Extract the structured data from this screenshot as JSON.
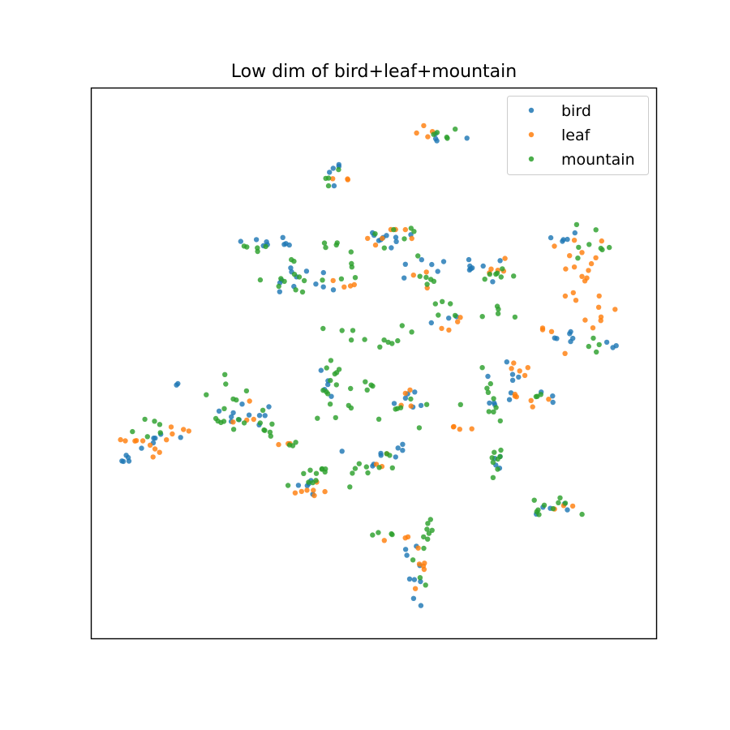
{
  "chart_data": {
    "type": "scatter",
    "title": "Low dim of bird+leaf+mountain",
    "xlabel": "",
    "ylabel": "",
    "xlim": [
      0,
      100
    ],
    "ylim": [
      0,
      100
    ],
    "ticks": "none",
    "grid": false,
    "legend_position": "top-right",
    "series": [
      {
        "name": "bird",
        "color": "#1f77b4",
        "clusters": [
          {
            "cx": 60.7,
            "cy": 93.0,
            "sx": 3.2,
            "sy": 1.8,
            "n": 4
          },
          {
            "cx": 42.8,
            "cy": 85.0,
            "sx": 0.9,
            "sy": 2.0,
            "n": 5
          },
          {
            "cx": 52.0,
            "cy": 73.5,
            "sx": 5.5,
            "sy": 1.6,
            "n": 10
          },
          {
            "cx": 29.0,
            "cy": 72.5,
            "sx": 2.5,
            "sy": 1.0,
            "n": 5
          },
          {
            "cx": 34.2,
            "cy": 72.5,
            "sx": 2.0,
            "sy": 1.0,
            "n": 4
          },
          {
            "cx": 35.0,
            "cy": 65.5,
            "sx": 3.5,
            "sy": 2.5,
            "n": 8
          },
          {
            "cx": 42.0,
            "cy": 66.0,
            "sx": 2.5,
            "sy": 2.0,
            "n": 4
          },
          {
            "cx": 59.0,
            "cy": 67.0,
            "sx": 3.5,
            "sy": 2.0,
            "n": 6
          },
          {
            "cx": 71.0,
            "cy": 67.5,
            "sx": 4.0,
            "sy": 2.0,
            "n": 8
          },
          {
            "cx": 85.5,
            "cy": 73.5,
            "sx": 2.5,
            "sy": 1.5,
            "n": 5
          },
          {
            "cx": 85.0,
            "cy": 55.5,
            "sx": 4.0,
            "sy": 1.2,
            "n": 6
          },
          {
            "cx": 93.0,
            "cy": 53.0,
            "sx": 1.2,
            "sy": 1.0,
            "n": 3
          },
          {
            "cx": 73.5,
            "cy": 48.5,
            "sx": 3.0,
            "sy": 2.0,
            "n": 5
          },
          {
            "cx": 63.0,
            "cy": 58.0,
            "sx": 2.0,
            "sy": 1.5,
            "n": 3
          },
          {
            "cx": 56.0,
            "cy": 43.0,
            "sx": 3.0,
            "sy": 1.5,
            "n": 6
          },
          {
            "cx": 41.5,
            "cy": 47.5,
            "sx": 1.5,
            "sy": 3.0,
            "n": 5
          },
          {
            "cx": 50.5,
            "cy": 32.0,
            "sx": 3.5,
            "sy": 2.0,
            "n": 6
          },
          {
            "cx": 71.5,
            "cy": 43.0,
            "sx": 2.5,
            "sy": 1.5,
            "n": 4
          },
          {
            "cx": 82.0,
            "cy": 44.0,
            "sx": 2.5,
            "sy": 1.5,
            "n": 4
          },
          {
            "cx": 72.3,
            "cy": 31.0,
            "sx": 1.2,
            "sy": 2.5,
            "n": 4
          },
          {
            "cx": 82.5,
            "cy": 23.0,
            "sx": 3.5,
            "sy": 1.2,
            "n": 5
          },
          {
            "cx": 5.0,
            "cy": 32.0,
            "sx": 1.0,
            "sy": 0.8,
            "n": 5
          },
          {
            "cx": 10.0,
            "cy": 36.0,
            "sx": 3.0,
            "sy": 1.5,
            "n": 6
          },
          {
            "cx": 14.5,
            "cy": 46.0,
            "sx": 0.4,
            "sy": 0.4,
            "n": 2
          },
          {
            "cx": 22.0,
            "cy": 40.0,
            "sx": 4.0,
            "sy": 2.5,
            "n": 6
          },
          {
            "cx": 30.0,
            "cy": 40.0,
            "sx": 2.5,
            "sy": 2.5,
            "n": 5
          },
          {
            "cx": 38.0,
            "cy": 27.0,
            "sx": 2.5,
            "sy": 1.5,
            "n": 5
          },
          {
            "cx": 56.5,
            "cy": 15.0,
            "sx": 2.0,
            "sy": 1.0,
            "n": 3
          },
          {
            "cx": 58.0,
            "cy": 9.0,
            "sx": 1.0,
            "sy": 3.5,
            "n": 6
          },
          {
            "cx": 54.8,
            "cy": 34.5,
            "sx": 1.0,
            "sy": 0.8,
            "n": 3
          }
        ]
      },
      {
        "name": "leaf",
        "color": "#ff7f0e",
        "clusters": [
          {
            "cx": 60.5,
            "cy": 93.5,
            "sx": 2.5,
            "sy": 1.5,
            "n": 4
          },
          {
            "cx": 44.0,
            "cy": 85.0,
            "sx": 2.0,
            "sy": 1.5,
            "n": 3
          },
          {
            "cx": 52.0,
            "cy": 73.5,
            "sx": 5.0,
            "sy": 1.5,
            "n": 7
          },
          {
            "cx": 44.5,
            "cy": 64.5,
            "sx": 2.0,
            "sy": 1.5,
            "n": 4
          },
          {
            "cx": 59.5,
            "cy": 66.0,
            "sx": 2.0,
            "sy": 2.0,
            "n": 3
          },
          {
            "cx": 73.0,
            "cy": 67.5,
            "sx": 2.5,
            "sy": 2.0,
            "n": 5
          },
          {
            "cx": 88.0,
            "cy": 68.0,
            "sx": 3.0,
            "sy": 5.5,
            "n": 18
          },
          {
            "cx": 91.0,
            "cy": 57.5,
            "sx": 2.5,
            "sy": 3.0,
            "n": 6
          },
          {
            "cx": 81.5,
            "cy": 56.5,
            "sx": 1.5,
            "sy": 1.0,
            "n": 3
          },
          {
            "cx": 65.0,
            "cy": 57.0,
            "sx": 2.5,
            "sy": 1.5,
            "n": 4
          },
          {
            "cx": 75.0,
            "cy": 48.0,
            "sx": 3.0,
            "sy": 2.0,
            "n": 5
          },
          {
            "cx": 80.5,
            "cy": 43.5,
            "sx": 1.5,
            "sy": 1.0,
            "n": 3
          },
          {
            "cx": 66.0,
            "cy": 38.0,
            "sx": 1.5,
            "sy": 0.8,
            "n": 4
          },
          {
            "cx": 55.0,
            "cy": 42.5,
            "sx": 2.5,
            "sy": 1.5,
            "n": 4
          },
          {
            "cx": 38.5,
            "cy": 26.5,
            "sx": 3.5,
            "sy": 2.0,
            "n": 7
          },
          {
            "cx": 51.5,
            "cy": 31.5,
            "sx": 2.0,
            "sy": 1.0,
            "n": 3
          },
          {
            "cx": 58.0,
            "cy": 12.0,
            "sx": 1.0,
            "sy": 3.0,
            "n": 6
          },
          {
            "cx": 54.5,
            "cy": 17.5,
            "sx": 1.5,
            "sy": 1.0,
            "n": 3
          },
          {
            "cx": 8.5,
            "cy": 34.5,
            "sx": 3.0,
            "sy": 1.5,
            "n": 10
          },
          {
            "cx": 13.0,
            "cy": 37.5,
            "sx": 2.0,
            "sy": 1.0,
            "n": 4
          },
          {
            "cx": 25.0,
            "cy": 40.5,
            "sx": 2.5,
            "sy": 1.5,
            "n": 4
          },
          {
            "cx": 34.5,
            "cy": 35.0,
            "sx": 1.5,
            "sy": 0.8,
            "n": 3
          },
          {
            "cx": 85.0,
            "cy": 23.0,
            "sx": 2.5,
            "sy": 1.0,
            "n": 3
          },
          {
            "cx": 76.0,
            "cy": 44.0,
            "sx": 2.0,
            "sy": 1.0,
            "n": 3
          }
        ]
      },
      {
        "name": "mountain",
        "color": "#2ca02c",
        "clusters": [
          {
            "cx": 61.5,
            "cy": 92.5,
            "sx": 3.0,
            "sy": 1.8,
            "n": 5
          },
          {
            "cx": 43.0,
            "cy": 84.5,
            "sx": 1.5,
            "sy": 2.5,
            "n": 4
          },
          {
            "cx": 30.0,
            "cy": 72.0,
            "sx": 2.5,
            "sy": 1.0,
            "n": 5
          },
          {
            "cx": 42.5,
            "cy": 72.0,
            "sx": 1.0,
            "sy": 1.5,
            "n": 4
          },
          {
            "cx": 35.5,
            "cy": 65.5,
            "sx": 3.5,
            "sy": 3.0,
            "n": 12
          },
          {
            "cx": 45.5,
            "cy": 68.0,
            "sx": 2.0,
            "sy": 2.0,
            "n": 5
          },
          {
            "cx": 54.0,
            "cy": 74.0,
            "sx": 4.0,
            "sy": 1.5,
            "n": 6
          },
          {
            "cx": 59.5,
            "cy": 67.5,
            "sx": 2.5,
            "sy": 2.5,
            "n": 6
          },
          {
            "cx": 73.5,
            "cy": 67.0,
            "sx": 3.5,
            "sy": 2.5,
            "n": 7
          },
          {
            "cx": 89.0,
            "cy": 71.5,
            "sx": 3.5,
            "sy": 3.5,
            "n": 8
          },
          {
            "cx": 92.0,
            "cy": 53.5,
            "sx": 2.0,
            "sy": 1.0,
            "n": 4
          },
          {
            "cx": 73.0,
            "cy": 60.0,
            "sx": 2.5,
            "sy": 1.5,
            "n": 5
          },
          {
            "cx": 64.0,
            "cy": 60.5,
            "sx": 2.5,
            "sy": 1.5,
            "n": 5
          },
          {
            "cx": 47.0,
            "cy": 55.0,
            "sx": 6.0,
            "sy": 1.5,
            "n": 12
          },
          {
            "cx": 42.0,
            "cy": 46.0,
            "sx": 2.0,
            "sy": 5.0,
            "n": 12
          },
          {
            "cx": 47.0,
            "cy": 42.0,
            "sx": 3.0,
            "sy": 4.0,
            "n": 9
          },
          {
            "cx": 56.0,
            "cy": 42.0,
            "sx": 3.5,
            "sy": 2.0,
            "n": 6
          },
          {
            "cx": 70.0,
            "cy": 43.0,
            "sx": 3.5,
            "sy": 3.5,
            "n": 10
          },
          {
            "cx": 79.5,
            "cy": 44.5,
            "sx": 2.0,
            "sy": 1.0,
            "n": 3
          },
          {
            "cx": 72.5,
            "cy": 31.0,
            "sx": 1.2,
            "sy": 3.0,
            "n": 8
          },
          {
            "cx": 81.0,
            "cy": 23.0,
            "sx": 3.5,
            "sy": 1.5,
            "n": 10
          },
          {
            "cx": 48.5,
            "cy": 31.0,
            "sx": 5.0,
            "sy": 2.5,
            "n": 12
          },
          {
            "cx": 38.0,
            "cy": 27.5,
            "sx": 2.5,
            "sy": 2.0,
            "n": 6
          },
          {
            "cx": 61.0,
            "cy": 20.0,
            "sx": 1.5,
            "sy": 1.0,
            "n": 5
          },
          {
            "cx": 57.5,
            "cy": 13.0,
            "sx": 1.5,
            "sy": 3.0,
            "n": 6
          },
          {
            "cx": 51.5,
            "cy": 17.5,
            "sx": 1.5,
            "sy": 0.8,
            "n": 4
          },
          {
            "cx": 11.0,
            "cy": 38.0,
            "sx": 3.0,
            "sy": 1.5,
            "n": 6
          },
          {
            "cx": 24.0,
            "cy": 42.0,
            "sx": 4.0,
            "sy": 4.0,
            "n": 14
          },
          {
            "cx": 31.0,
            "cy": 38.0,
            "sx": 2.5,
            "sy": 2.5,
            "n": 7
          },
          {
            "cx": 35.0,
            "cy": 34.5,
            "sx": 1.5,
            "sy": 1.0,
            "n": 3
          },
          {
            "cx": 40.5,
            "cy": 30.0,
            "sx": 1.5,
            "sy": 1.0,
            "n": 3
          }
        ]
      }
    ]
  }
}
